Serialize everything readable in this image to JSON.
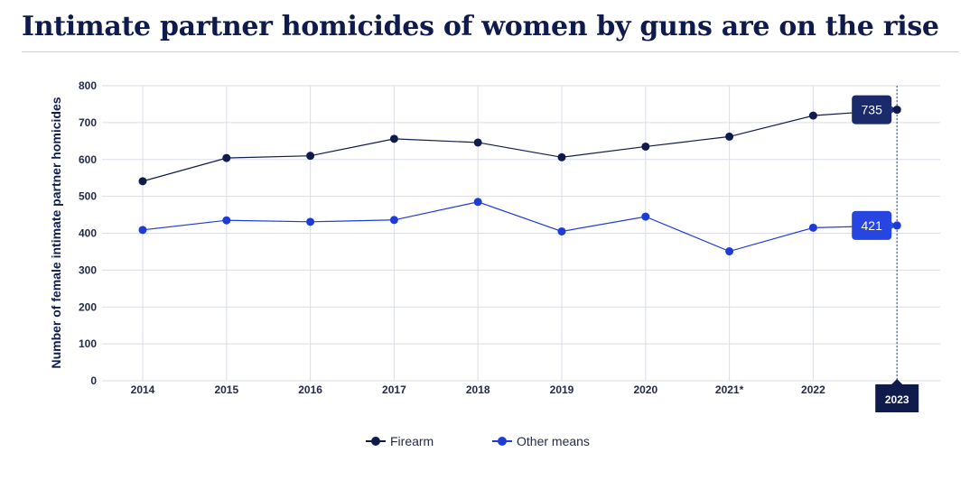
{
  "title": "Intimate partner homicides of women by guns are on the rise",
  "chart_data": {
    "type": "line",
    "ylabel": "Number of female intimate partner homicides",
    "xlabel": "",
    "categories": [
      "2014",
      "2015",
      "2016",
      "2017",
      "2018",
      "2019",
      "2020",
      "2021*",
      "2022",
      "2023"
    ],
    "ylim": [
      0,
      800
    ],
    "yticks": [
      0,
      100,
      200,
      300,
      400,
      500,
      600,
      700,
      800
    ],
    "grid": true,
    "legend_position": "bottom",
    "series": [
      {
        "name": "Firearm",
        "color": "#0f1b4d",
        "values": [
          541,
          604,
          610,
          656,
          646,
          606,
          635,
          662,
          719,
          735
        ]
      },
      {
        "name": "Other means",
        "color": "#1f3bd6",
        "values": [
          409,
          435,
          431,
          436,
          485,
          405,
          445,
          351,
          415,
          421
        ]
      }
    ],
    "highlight": {
      "category": "2023",
      "labels": [
        "735",
        "421"
      ]
    }
  }
}
